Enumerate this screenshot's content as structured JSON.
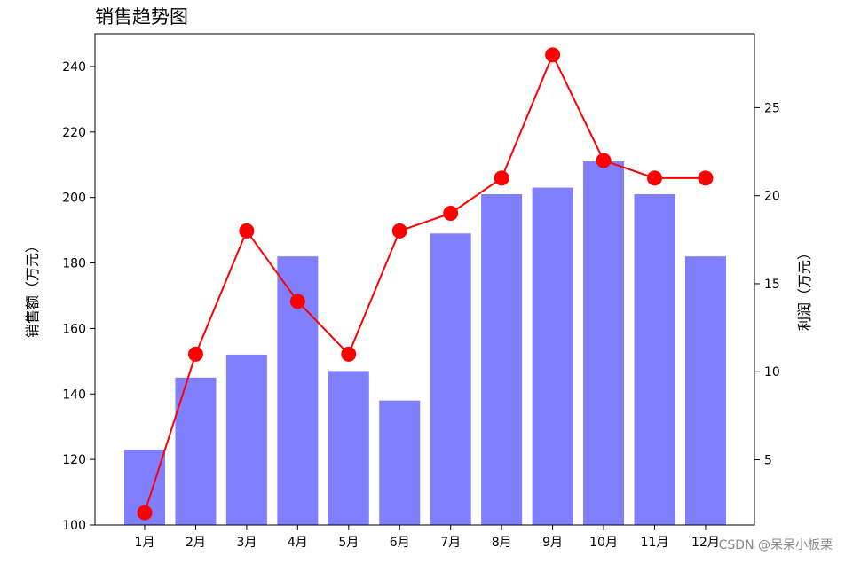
{
  "chart_data": {
    "type": "bar",
    "title": "销售趋势图",
    "categories": [
      "1月",
      "2月",
      "3月",
      "4月",
      "5月",
      "6月",
      "7月",
      "8月",
      "9月",
      "10月",
      "11月",
      "12月"
    ],
    "series": [
      {
        "type": "bar",
        "axis": "left",
        "color": "#8080ff",
        "values": [
          123,
          145,
          152,
          182,
          147,
          138,
          189,
          201,
          203,
          211,
          201,
          182
        ]
      },
      {
        "type": "line",
        "axis": "right",
        "color": "#ff0000",
        "marker": "circle",
        "values": [
          2,
          11,
          18,
          14,
          11,
          18,
          19,
          21,
          28,
          22,
          21,
          21
        ]
      }
    ],
    "ylabel": "销售额（万元）",
    "y2label": "利润（万元）",
    "ylim": [
      100,
      250
    ],
    "y2lim": [
      1.3,
      29.2
    ],
    "yticks": [
      100,
      120,
      140,
      160,
      180,
      200,
      220,
      240
    ],
    "y2ticks": [
      5,
      10,
      15,
      20,
      25
    ],
    "grid": false,
    "legend": "none"
  },
  "watermark": "CSDN @呆呆小板栗"
}
